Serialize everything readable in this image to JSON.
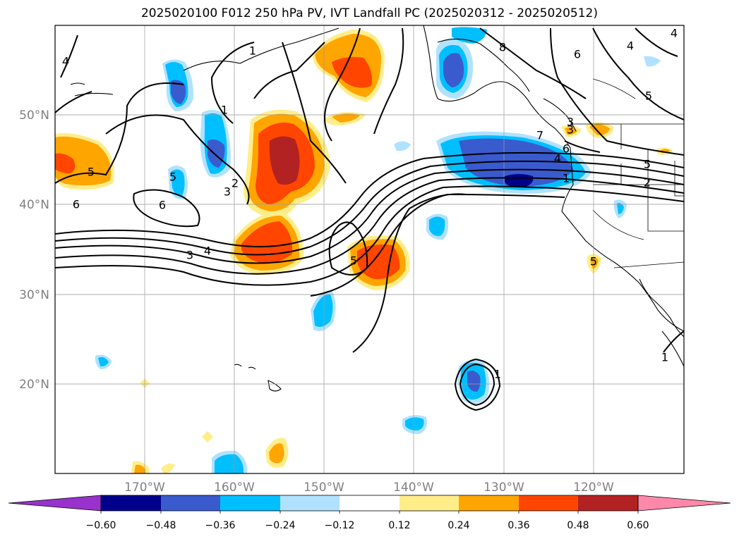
{
  "title": "2025020100 F012 250 hPa PV, IVT Landfall PC (2025020312 - 2025020512)",
  "map": {
    "lon_labels": [
      "170°W",
      "160°W",
      "150°W",
      "140°W",
      "130°W",
      "120°W"
    ],
    "lat_labels": [
      "50°N",
      "40°N",
      "30°N",
      "20°N"
    ],
    "gridlines": true
  },
  "colorbar": {
    "extend": "both",
    "colors": [
      "#9932cc",
      "#00008b",
      "#3a5bcd",
      "#00bfff",
      "#b0e2ff",
      "#ffffff",
      "#ffed8a",
      "#ffa500",
      "#ff4500",
      "#b22222",
      "#ff88aa"
    ],
    "ticks": [
      "−0.60",
      "−0.48",
      "−0.36",
      "−0.24",
      "−0.12",
      "0.12",
      "0.24",
      "0.36",
      "0.48",
      "0.60"
    ]
  },
  "pv_contour_labels": [
    "4",
    "1",
    "8",
    "6",
    "4",
    "5",
    "1",
    "7",
    "6",
    "5",
    "3",
    "2",
    "1",
    "5",
    "4",
    "3",
    "6",
    "5",
    "5",
    "2",
    "6",
    "4",
    "3",
    "4",
    "5",
    "1",
    "1",
    "3"
  ]
}
